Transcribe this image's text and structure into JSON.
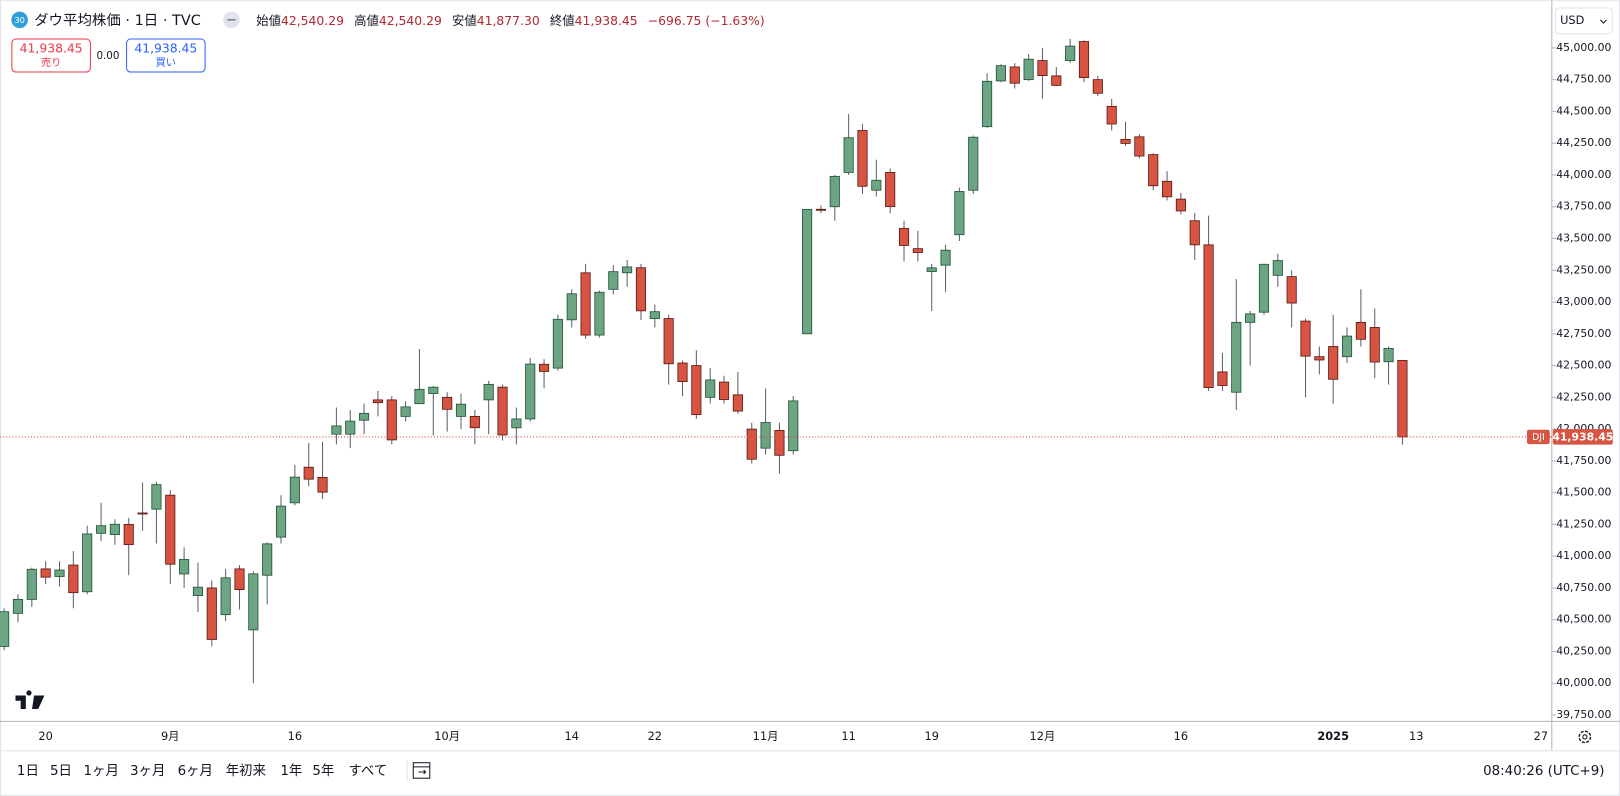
{
  "header": {
    "badge": "30",
    "title": "ダウ平均株価 · 1日 · TVC",
    "ohlc": [
      {
        "label": "始値",
        "value": "42,540.29"
      },
      {
        "label": "高値",
        "value": "42,540.29"
      },
      {
        "label": "安値",
        "value": "41,877.30"
      },
      {
        "label": "終値",
        "value": "41,938.45"
      }
    ],
    "change": "−696.75 (−1.63%)"
  },
  "trade": {
    "sell_price": "41,938.45",
    "sell_label": "売り",
    "spread": "0.00",
    "buy_price": "41,938.45",
    "buy_label": "買い"
  },
  "currency": "USD",
  "chart_data": {
    "type": "candlestick",
    "categories": [
      null,
      null,
      null,
      "20",
      null,
      null,
      null,
      null,
      null,
      null,
      null,
      null,
      "9月",
      null,
      null,
      null,
      null,
      null,
      null,
      null,
      null,
      "16",
      null,
      null,
      null,
      null,
      null,
      null,
      null,
      null,
      null,
      null,
      "10月",
      null,
      null,
      null,
      null,
      null,
      null,
      null,
      null,
      "14",
      null,
      null,
      null,
      null,
      null,
      "22",
      null,
      null,
      null,
      null,
      null,
      null,
      null,
      "11月",
      null,
      null,
      null,
      null,
      null,
      "11",
      null,
      null,
      null,
      null,
      null,
      "19",
      null,
      null,
      null,
      null,
      null,
      null,
      null,
      "12月",
      null,
      null,
      null,
      null,
      null,
      null,
      null,
      null,
      null,
      "16",
      null,
      null,
      null,
      null,
      null,
      null,
      null,
      null,
      null,
      null,
      "2025",
      null,
      null,
      null,
      null,
      null,
      "13",
      null,
      null,
      null,
      null,
      null,
      null,
      null,
      null,
      "27"
    ],
    "open": [
      40290,
      40550,
      40660,
      40900,
      40840,
      40930,
      40720,
      41180,
      41170,
      41250,
      41340,
      41370,
      41480,
      40860,
      40690,
      40750,
      40540,
      40900,
      40420,
      40850,
      41150,
      41420,
      41700,
      41620,
      41960,
      41960,
      42070,
      42230,
      42230,
      42100,
      42200,
      42280,
      42250,
      42100,
      42100,
      42230,
      42330,
      42010,
      42080,
      42510,
      42480,
      42860,
      43230,
      42740,
      43100,
      43230,
      43270,
      42870,
      42870,
      42520,
      42500,
      42250,
      42370,
      42270,
      42000,
      41850,
      41990,
      41830,
      42750,
      43730,
      43750,
      44020,
      44350,
      43880,
      44020,
      43580,
      43420,
      43240,
      43290,
      43530,
      43880,
      44380,
      44740,
      44850,
      44750,
      44900,
      44780,
      44900,
      45050,
      44750,
      44540,
      44280,
      44300,
      44160,
      43950,
      43810,
      43640,
      43450,
      42450,
      42290,
      42840,
      42920,
      43210,
      43200,
      42850,
      42570,
      42650,
      42570,
      42840,
      42800,
      42530,
      42540.29,
      null,
      null,
      null,
      null,
      null,
      null,
      null,
      null,
      null,
      null
    ],
    "high": [
      40590,
      40700,
      40910,
      40960,
      40960,
      41040,
      41240,
      41420,
      41290,
      41300,
      41580,
      41585,
      41520,
      41070,
      40950,
      40810,
      40900,
      40930,
      40880,
      41110,
      41480,
      41720,
      41890,
      41900,
      42170,
      42150,
      42200,
      42300,
      42260,
      42220,
      42630,
      42340,
      42290,
      42280,
      42150,
      42380,
      42350,
      42170,
      42560,
      42550,
      42900,
      43100,
      43300,
      43090,
      43290,
      43330,
      43300,
      42980,
      42900,
      42540,
      42620,
      42480,
      42420,
      42450,
      42050,
      42320,
      42050,
      42260,
      43730,
      43760,
      44000,
      44480,
      44400,
      44120,
      44050,
      43640,
      43560,
      43300,
      43450,
      43900,
      44310,
      44800,
      44870,
      44880,
      44950,
      45000,
      44850,
      45070,
      45060,
      44780,
      44600,
      44420,
      44320,
      44170,
      44030,
      43860,
      43700,
      43680,
      42600,
      43180,
      42930,
      43300,
      43380,
      43250,
      42870,
      42650,
      42900,
      42800,
      43100,
      42950,
      42650,
      42540.29,
      null,
      null,
      null,
      null,
      null,
      null,
      null,
      null,
      null,
      null
    ],
    "low": [
      40260,
      40480,
      40600,
      40780,
      40760,
      40590,
      40700,
      41120,
      41090,
      40850,
      41200,
      41100,
      40780,
      40750,
      40560,
      40290,
      40490,
      40580,
      40000,
      40620,
      41100,
      41400,
      41550,
      41450,
      41880,
      41850,
      41960,
      42100,
      41880,
      42060,
      42200,
      41950,
      41980,
      42000,
      41880,
      41960,
      41910,
      41880,
      42060,
      42320,
      42460,
      42800,
      42710,
      42720,
      43060,
      43120,
      42860,
      42800,
      42350,
      42260,
      42080,
      42200,
      42200,
      42120,
      41730,
      41800,
      41650,
      41800,
      42750,
      43700,
      43640,
      44000,
      43850,
      43830,
      43700,
      43320,
      43320,
      42930,
      43080,
      43480,
      43850,
      44370,
      44730,
      44680,
      44740,
      44600,
      44700,
      44880,
      44730,
      44620,
      44350,
      44230,
      44130,
      43880,
      43800,
      43690,
      43330,
      42300,
      42300,
      42150,
      42500,
      42900,
      43120,
      42800,
      42250,
      42430,
      42200,
      42520,
      42650,
      42400,
      42350,
      41877.3,
      null,
      null,
      null,
      null,
      null,
      null,
      null,
      null,
      null,
      null
    ],
    "close": [
      40563,
      40660,
      40897,
      40835,
      40891,
      40713,
      41175,
      41240,
      41251,
      41091,
      41335,
      41563,
      40937,
      40975,
      40756,
      40345,
      40830,
      40737,
      40861,
      41097,
      41394,
      41622,
      41606,
      41504,
      42025,
      42063,
      42124,
      42208,
      41915,
      42175,
      42313,
      42330,
      42156,
      42196,
      42011,
      42352,
      41954,
      42080,
      42512,
      42454,
      42864,
      43065,
      42740,
      43077,
      43239,
      43276,
      42931,
      42924,
      42514,
      42374,
      42114,
      42387,
      42233,
      42142,
      41763,
      42052,
      41794,
      42222,
      43729,
      43729,
      43989,
      44293,
      43911,
      43958,
      43751,
      43445,
      43390,
      43269,
      43408,
      43870,
      44297,
      44737,
      44860,
      44722,
      44911,
      44782,
      44705,
      45014,
      44766,
      44643,
      44401,
      44248,
      44149,
      43915,
      43828,
      43717,
      43450,
      42327,
      42343,
      42840,
      42907,
      43297,
      43326,
      42992,
      42574,
      42544,
      42392,
      42732,
      42707,
      42528,
      42635,
      41938.45,
      null,
      null,
      null,
      null,
      null,
      null,
      null,
      null,
      null,
      null
    ],
    "up_color": "#6ba583",
    "down_color": "#d75442",
    "ylim": [
      39700,
      45375
    ],
    "yticks": [
      {
        "value": 39750,
        "label": "39,750.00"
      },
      {
        "value": 40000,
        "label": "40,000.00"
      },
      {
        "value": 40250,
        "label": "40,250.00"
      },
      {
        "value": 40500,
        "label": "40,500.00"
      },
      {
        "value": 40750,
        "label": "40,750.00"
      },
      {
        "value": 41000,
        "label": "41,000.00"
      },
      {
        "value": 41250,
        "label": "41,250.00"
      },
      {
        "value": 41500,
        "label": "41,500.00"
      },
      {
        "value": 41750,
        "label": "41,750.00"
      },
      {
        "value": 42000,
        "label": "42,000.00"
      },
      {
        "value": 42250,
        "label": "42,250.00"
      },
      {
        "value": 42500,
        "label": "42,500.00"
      },
      {
        "value": 42750,
        "label": "42,750.00"
      },
      {
        "value": 43000,
        "label": "43,000.00"
      },
      {
        "value": 43250,
        "label": "43,250.00"
      },
      {
        "value": 43500,
        "label": "43,500.00"
      },
      {
        "value": 43750,
        "label": "43,750.00"
      },
      {
        "value": 44000,
        "label": "44,000.00"
      },
      {
        "value": 44250,
        "label": "44,250.00"
      },
      {
        "value": 44500,
        "label": "44,500.00"
      },
      {
        "value": 44750,
        "label": "44,750.00"
      },
      {
        "value": 45000,
        "label": "45,000.00"
      }
    ],
    "grid": false,
    "last_price": {
      "symbol": "DJI",
      "label": "41,938.45"
    }
  },
  "toolbar": {
    "ranges": [
      "1日",
      "5日",
      "1ヶ月",
      "3ヶ月",
      "6ヶ月",
      "年初来",
      "1年",
      "5年",
      "すべて"
    ],
    "clock": "08:40:26 (UTC+9)"
  }
}
